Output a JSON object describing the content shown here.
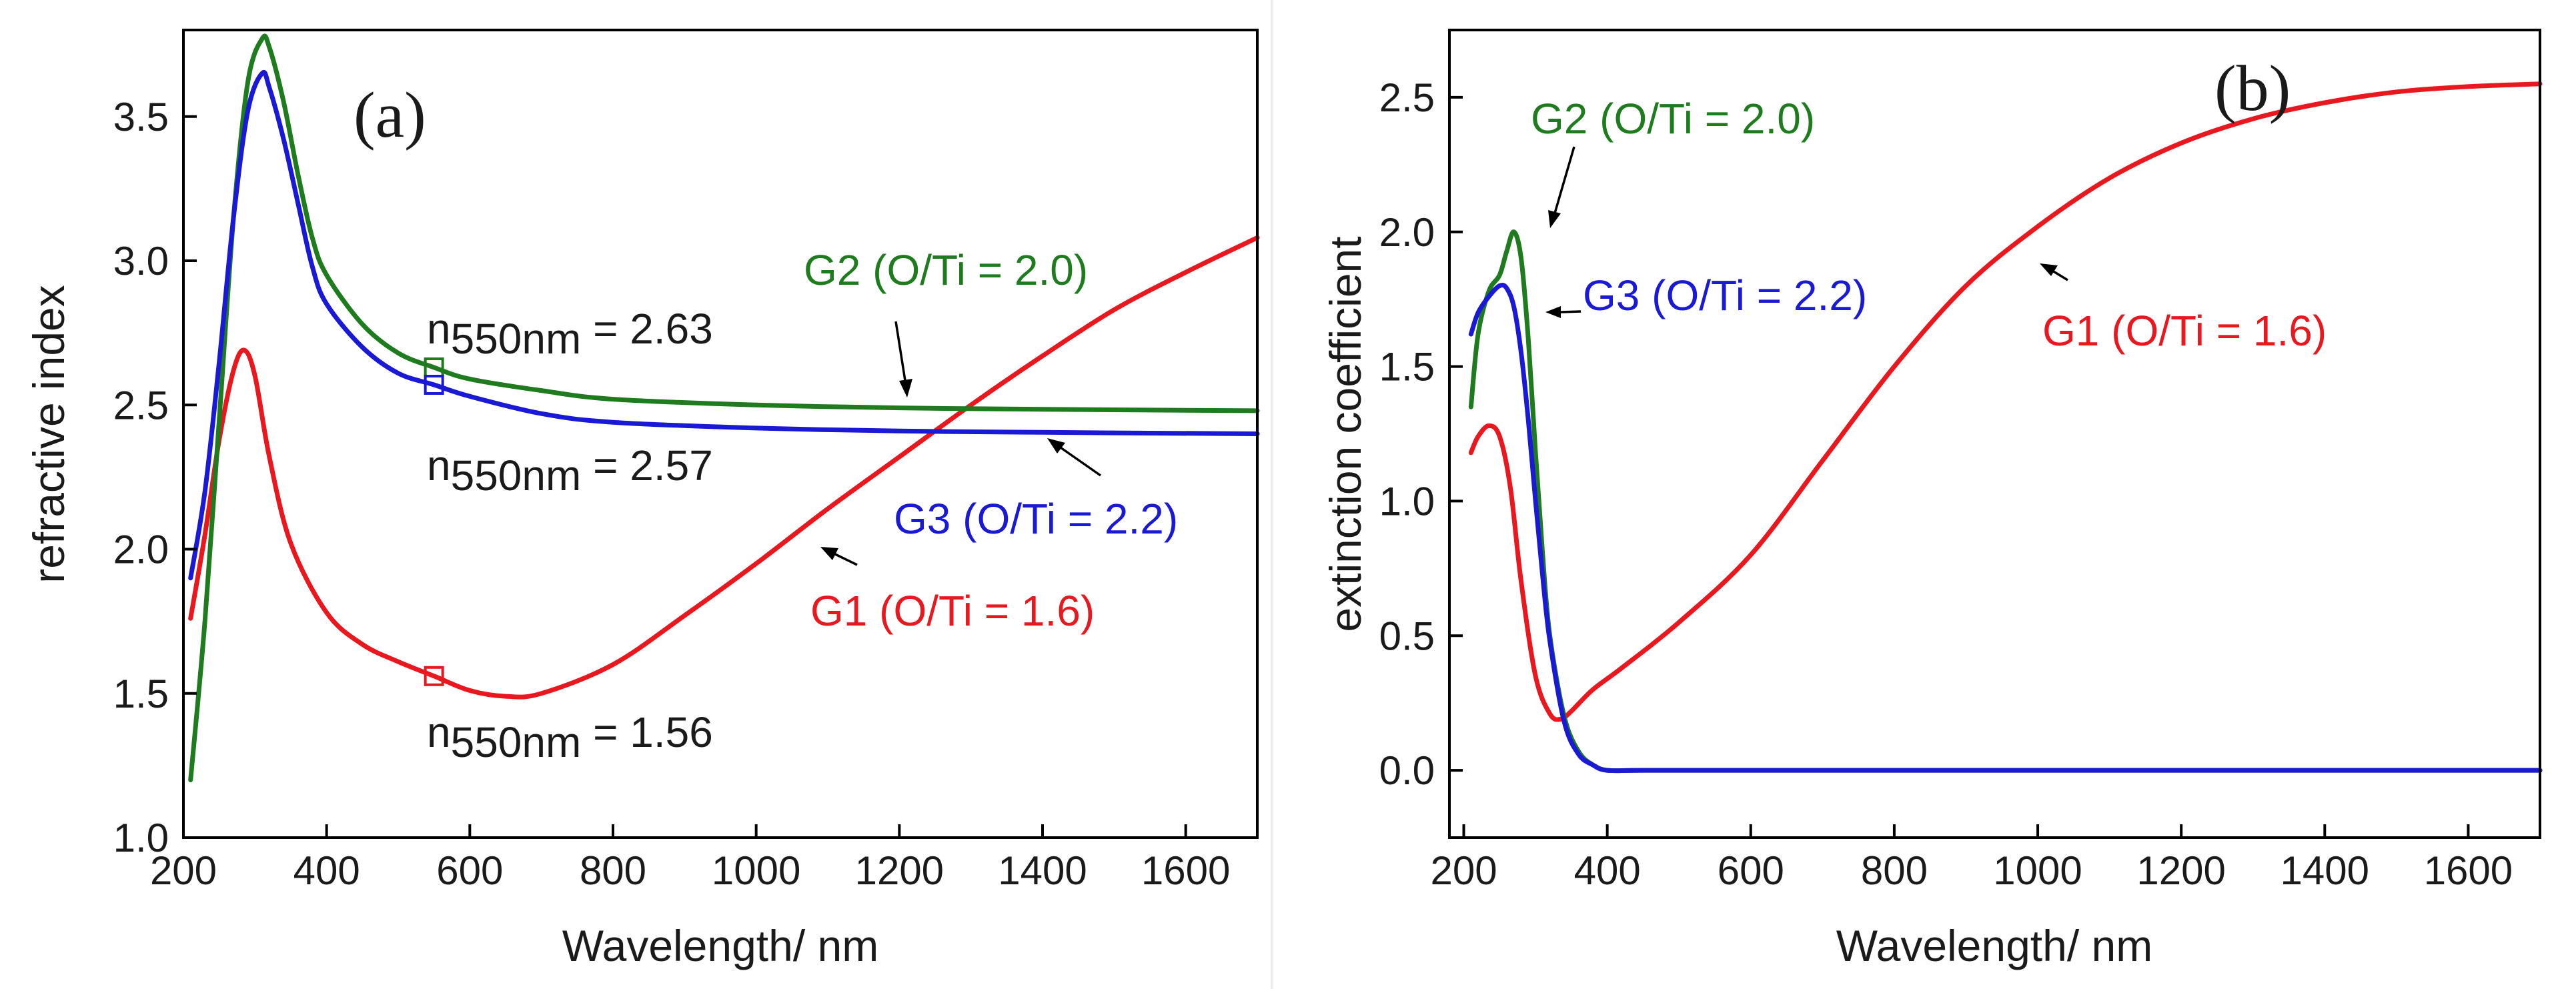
{
  "colors": {
    "G1": "#e8181e",
    "G2": "#1e7b1e",
    "G3": "#1a1ad6",
    "annotation_n": "#1a1a1a",
    "arrow": "#000000"
  },
  "chart_data": [
    {
      "type": "line",
      "panel_label": "(a)",
      "title": "",
      "xlabel": "Wavelength/ nm",
      "ylabel": "refractive index",
      "xlim": [
        200,
        1700
      ],
      "ylim": [
        1.0,
        3.8
      ],
      "xticks": [
        200,
        400,
        600,
        800,
        1000,
        1200,
        1400,
        1600
      ],
      "yticks": [
        1.0,
        1.5,
        2.0,
        2.5,
        3.0,
        3.5
      ],
      "xtick_labels": [
        "200",
        "400",
        "600",
        "800",
        "1000",
        "1200",
        "1400",
        "1600"
      ],
      "ytick_labels": [
        "1.0",
        "1.5",
        "2.0",
        "2.5",
        "3.0",
        "3.5"
      ],
      "series": [
        {
          "name": "G1 (O/Ti = 1.6)",
          "color": "#e8181e",
          "x": [
            210,
            230,
            250,
            270,
            285,
            300,
            320,
            350,
            400,
            450,
            500,
            550,
            600,
            650,
            700,
            800,
            900,
            1000,
            1100,
            1200,
            1300,
            1400,
            1500,
            1600,
            1700
          ],
          "y": [
            1.76,
            2.05,
            2.38,
            2.62,
            2.69,
            2.6,
            2.32,
            2.02,
            1.78,
            1.67,
            1.61,
            1.56,
            1.51,
            1.49,
            1.5,
            1.6,
            1.77,
            1.95,
            2.14,
            2.32,
            2.5,
            2.67,
            2.83,
            2.96,
            3.08
          ]
        },
        {
          "name": "G2 (O/Ti = 2.0)",
          "color": "#1e7b1e",
          "x": [
            210,
            230,
            250,
            270,
            290,
            310,
            320,
            340,
            360,
            380,
            400,
            450,
            500,
            550,
            600,
            700,
            800,
            1000,
            1200,
            1400,
            1700
          ],
          "y": [
            1.2,
            1.75,
            2.45,
            3.15,
            3.62,
            3.77,
            3.74,
            3.55,
            3.3,
            3.08,
            2.95,
            2.78,
            2.68,
            2.63,
            2.59,
            2.55,
            2.52,
            2.5,
            2.49,
            2.485,
            2.48
          ]
        },
        {
          "name": "G3 (O/Ti = 2.2)",
          "color": "#1a1ad6",
          "x": [
            210,
            230,
            250,
            270,
            290,
            310,
            320,
            340,
            360,
            380,
            400,
            450,
            500,
            550,
            600,
            700,
            800,
            1000,
            1200,
            1400,
            1700
          ],
          "y": [
            1.9,
            2.2,
            2.65,
            3.15,
            3.52,
            3.65,
            3.6,
            3.42,
            3.2,
            2.98,
            2.85,
            2.7,
            2.61,
            2.57,
            2.53,
            2.47,
            2.44,
            2.42,
            2.41,
            2.405,
            2.4
          ]
        }
      ],
      "markers": [
        {
          "series": "G2 (O/Ti = 2.0)",
          "x": 550,
          "y": 2.63
        },
        {
          "series": "G3 (O/Ti = 2.2)",
          "x": 550,
          "y": 2.57
        },
        {
          "series": "G1 (O/Ti = 1.6)",
          "x": 550,
          "y": 1.56
        }
      ],
      "annotations": [
        {
          "prefix": "n",
          "subscript": "550nm",
          "suffix": " = 2.63",
          "color": "#1a1a1a"
        },
        {
          "prefix": "n",
          "subscript": "550nm",
          "suffix": " = 2.57",
          "color": "#1a1a1a"
        },
        {
          "prefix": "n",
          "subscript": "550nm",
          "suffix": " = 1.56",
          "color": "#1a1a1a"
        },
        {
          "text": "G2 (O/Ti = 2.0)",
          "color": "#1e7b1e"
        },
        {
          "text": "G3 (O/Ti = 2.2)",
          "color": "#1a1ad6"
        },
        {
          "text": "G1 (O/Ti = 1.6)",
          "color": "#e8181e"
        }
      ]
    },
    {
      "type": "line",
      "panel_label": "(b)",
      "title": "",
      "xlabel": "Wavelength/ nm",
      "ylabel": "extinction coefficient",
      "xlim": [
        180,
        1700
      ],
      "ylim": [
        -0.25,
        2.75
      ],
      "xticks": [
        200,
        400,
        600,
        800,
        1000,
        1200,
        1400,
        1600
      ],
      "yticks": [
        0.0,
        0.5,
        1.0,
        1.5,
        2.0,
        2.5
      ],
      "xtick_labels": [
        "200",
        "400",
        "600",
        "800",
        "1000",
        "1200",
        "1400",
        "1600"
      ],
      "ytick_labels": [
        "0.0",
        "0.5",
        "1.0",
        "1.5",
        "2.0",
        "2.5"
      ],
      "series": [
        {
          "name": "G1 (O/Ti = 1.6)",
          "color": "#e8181e",
          "x": [
            210,
            220,
            235,
            250,
            265,
            280,
            300,
            320,
            335,
            350,
            380,
            420,
            500,
            600,
            700,
            800,
            900,
            1000,
            1100,
            1200,
            1300,
            1400,
            1500,
            1600,
            1700
          ],
          "y": [
            1.18,
            1.24,
            1.28,
            1.24,
            1.05,
            0.7,
            0.35,
            0.21,
            0.19,
            0.22,
            0.3,
            0.38,
            0.55,
            0.8,
            1.15,
            1.5,
            1.8,
            2.02,
            2.2,
            2.33,
            2.42,
            2.48,
            2.52,
            2.54,
            2.55
          ]
        },
        {
          "name": "G2 (O/Ti = 2.0)",
          "color": "#1e7b1e",
          "x": [
            210,
            220,
            235,
            250,
            260,
            270,
            280,
            290,
            300,
            310,
            320,
            340,
            360,
            380,
            400,
            450,
            600,
            800,
            1000,
            1200,
            1400,
            1700
          ],
          "y": [
            1.35,
            1.62,
            1.78,
            1.84,
            1.93,
            2.0,
            1.9,
            1.6,
            1.18,
            0.8,
            0.5,
            0.2,
            0.07,
            0.02,
            0.0,
            0.0,
            0.0,
            0.0,
            0.0,
            0.0,
            0.0,
            0.0
          ]
        },
        {
          "name": "G3 (O/Ti = 2.2)",
          "color": "#1a1ad6",
          "x": [
            210,
            220,
            235,
            250,
            260,
            270,
            280,
            290,
            300,
            310,
            320,
            340,
            360,
            380,
            400,
            450,
            600,
            800,
            1000,
            1200,
            1400,
            1700
          ],
          "y": [
            1.62,
            1.7,
            1.76,
            1.8,
            1.79,
            1.72,
            1.55,
            1.3,
            1.0,
            0.72,
            0.48,
            0.18,
            0.06,
            0.02,
            0.0,
            0.0,
            0.0,
            0.0,
            0.0,
            0.0,
            0.0,
            0.0
          ]
        }
      ],
      "annotations": [
        {
          "text": "G2 (O/Ti = 2.0)",
          "color": "#1e7b1e"
        },
        {
          "text": "G3 (O/Ti = 2.2)",
          "color": "#1a1ad6"
        },
        {
          "text": "G1 (O/Ti = 1.6)",
          "color": "#e8181e"
        }
      ]
    }
  ]
}
